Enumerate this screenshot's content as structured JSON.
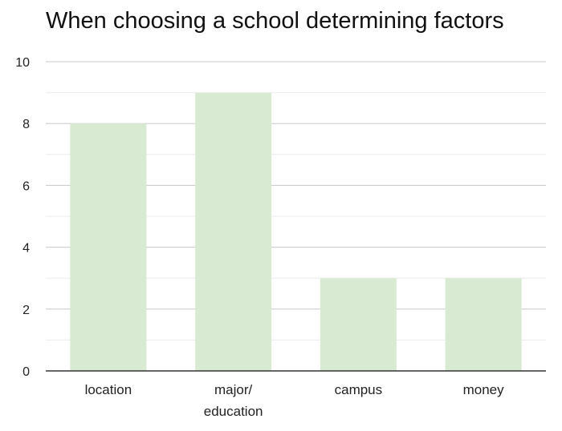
{
  "chart_data": {
    "type": "bar",
    "title": "When choosing a school determining factors",
    "categories": [
      [
        "location"
      ],
      [
        "major/",
        "education"
      ],
      [
        "campus"
      ],
      [
        "money"
      ]
    ],
    "values": [
      8,
      9,
      3,
      3
    ],
    "ylim": [
      0,
      10
    ],
    "yticks": [
      0,
      2,
      4,
      6,
      8,
      10
    ],
    "minor_grid": true,
    "grid": true,
    "legend": "none",
    "xlabel": "",
    "ylabel": "",
    "colors": {
      "bar": "#d9ead3",
      "grid_major": "#c8c8c8",
      "grid_minor": "#ececec",
      "axis": "#333333"
    }
  }
}
